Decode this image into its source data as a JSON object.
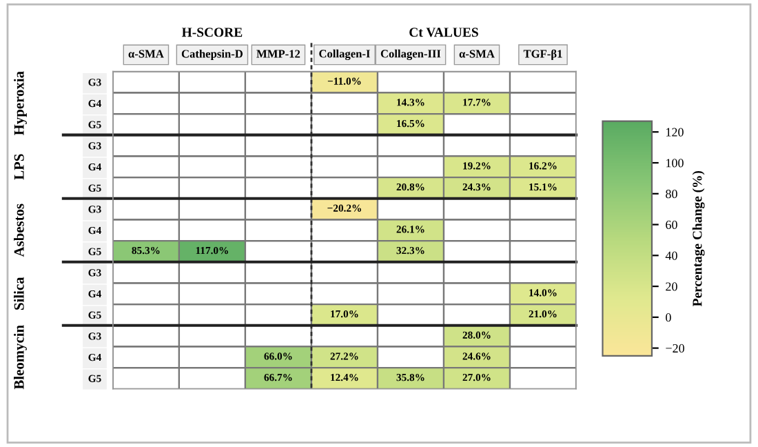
{
  "chart_data": {
    "type": "heatmap",
    "categories": [
      "α-SMA",
      "Cathepsin-D",
      "MMP-12",
      "Collagen-I",
      "Collagen-III",
      "α-SMA",
      "TGF-β1"
    ],
    "y_categories": [
      "G3",
      "G4",
      "G5",
      "G3",
      "G4",
      "G5",
      "G3",
      "G4",
      "G5",
      "G3",
      "G4",
      "G5",
      "G3",
      "G4",
      "G5"
    ],
    "cells": [
      [
        null,
        null,
        null,
        -11.0,
        null,
        null,
        null
      ],
      [
        null,
        null,
        null,
        null,
        14.3,
        17.7,
        null
      ],
      [
        null,
        null,
        null,
        null,
        16.5,
        null,
        null
      ],
      [
        null,
        null,
        null,
        null,
        null,
        null,
        null
      ],
      [
        null,
        null,
        null,
        null,
        null,
        19.2,
        16.2
      ],
      [
        null,
        null,
        null,
        null,
        20.8,
        24.3,
        15.1
      ],
      [
        null,
        null,
        null,
        -20.2,
        null,
        null,
        null
      ],
      [
        null,
        null,
        null,
        null,
        26.1,
        null,
        null
      ],
      [
        85.3,
        117.0,
        null,
        null,
        32.3,
        null,
        null
      ],
      [
        null,
        null,
        null,
        null,
        null,
        null,
        null
      ],
      [
        null,
        null,
        null,
        null,
        null,
        null,
        14.0
      ],
      [
        null,
        null,
        null,
        17.0,
        null,
        null,
        21.0
      ],
      [
        null,
        null,
        null,
        null,
        null,
        28.0,
        null
      ],
      [
        null,
        null,
        66.0,
        27.2,
        null,
        24.6,
        null
      ],
      [
        null,
        null,
        66.7,
        12.4,
        35.8,
        27.0,
        null
      ]
    ],
    "cell_labels": [
      [
        null,
        null,
        null,
        "−11.0%",
        null,
        null,
        null
      ],
      [
        null,
        null,
        null,
        null,
        "14.3%",
        "17.7%",
        null
      ],
      [
        null,
        null,
        null,
        null,
        "16.5%",
        null,
        null
      ],
      [
        null,
        null,
        null,
        null,
        null,
        null,
        null
      ],
      [
        null,
        null,
        null,
        null,
        null,
        "19.2%",
        "16.2%"
      ],
      [
        null,
        null,
        null,
        null,
        "20.8%",
        "24.3%",
        "15.1%"
      ],
      [
        null,
        null,
        null,
        "−20.2%",
        null,
        null,
        null
      ],
      [
        null,
        null,
        null,
        null,
        "26.1%",
        null,
        null
      ],
      [
        "85.3%",
        "117.0%",
        null,
        null,
        "32.3%",
        null,
        null
      ],
      [
        null,
        null,
        null,
        null,
        null,
        null,
        null
      ],
      [
        null,
        null,
        null,
        null,
        null,
        null,
        "14.0%"
      ],
      [
        null,
        null,
        null,
        "17.0%",
        null,
        null,
        "21.0%"
      ],
      [
        null,
        null,
        null,
        null,
        null,
        "28.0%",
        null
      ],
      [
        null,
        null,
        "66.0%",
        "27.2%",
        null,
        "24.6%",
        null
      ],
      [
        null,
        null,
        "66.7%",
        "12.4%",
        "35.8%",
        "27.0%",
        null
      ]
    ],
    "clim": [
      -25,
      127
    ],
    "cticks": [
      -20,
      0,
      20,
      40,
      60,
      80,
      100,
      120
    ],
    "clabel": "Percentage Change (%)",
    "annotations": [
      "H-SCORE",
      "Ct VALUES",
      "Hyperoxia",
      "LPS",
      "Asbestos",
      "Silica",
      "Bleomycin"
    ]
  }
}
